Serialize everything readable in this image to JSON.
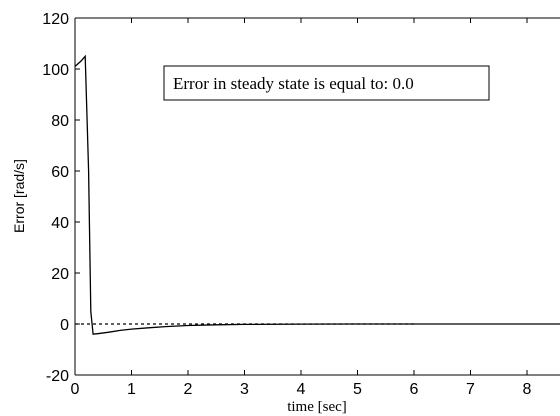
{
  "chart_data": {
    "type": "line",
    "title": "",
    "xlabel": "time [sec]",
    "ylabel": "Error [rad/s]",
    "xlim": [
      0,
      8.7
    ],
    "ylim": [
      -20,
      120
    ],
    "xticks": [
      "0",
      "1",
      "2",
      "3",
      "4",
      "5",
      "6",
      "7",
      "8"
    ],
    "yticks": [
      "-20",
      "0",
      "20",
      "40",
      "60",
      "80",
      "100",
      "120"
    ],
    "grid": false,
    "annotation": "Error in steady state is equal to: 0.0",
    "series": [
      {
        "style": "solid",
        "color": "#000000",
        "x": [
          0.0,
          0.1,
          0.18,
          0.24,
          0.28,
          0.32,
          0.4,
          0.6,
          0.8,
          1.0,
          1.3,
          1.6,
          2.0,
          2.5,
          3.0,
          4.0,
          5.0,
          6.0,
          7.0,
          8.0,
          8.7
        ],
        "y": [
          101,
          103,
          105,
          60,
          5,
          -4,
          -3.8,
          -3.2,
          -2.5,
          -2.0,
          -1.5,
          -1.0,
          -0.6,
          -0.3,
          -0.15,
          -0.05,
          0,
          0,
          0,
          0,
          0
        ]
      },
      {
        "style": "dashed",
        "color": "#000000",
        "x": [
          0.0,
          6.0
        ],
        "y": [
          0,
          0
        ]
      }
    ]
  }
}
